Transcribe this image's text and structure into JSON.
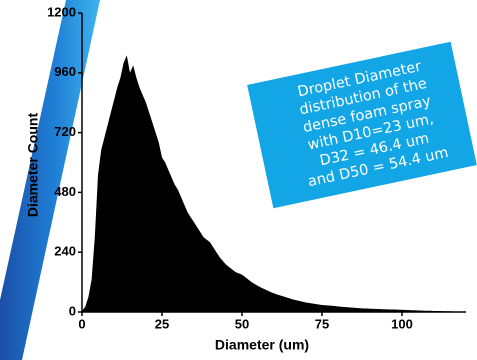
{
  "chart_data": {
    "type": "area",
    "xlabel": "Diameter (um)",
    "ylabel": "Diameter Count",
    "color": "#000000",
    "annotation": [
      "Droplet Diameter",
      "distribution of the",
      "dense foam spray",
      "with D10=23 um,",
      "D32 = 46.4 um",
      "and D50 = 54.4 um"
    ],
    "annotation_color": "#12a6e6",
    "xlim": [
      0,
      120
    ],
    "xticks": [
      0,
      25,
      50,
      75,
      100
    ],
    "ylim": [
      0,
      1200
    ],
    "yticks": [
      0,
      240,
      480,
      720,
      960,
      1200
    ],
    "x": [
      0,
      1,
      2,
      3,
      4,
      5,
      6,
      7,
      8,
      9,
      10,
      11,
      12,
      13,
      14,
      15,
      16,
      17,
      18,
      19,
      20,
      21,
      22,
      23,
      24,
      25,
      26,
      27,
      28,
      29,
      30,
      31,
      32,
      33,
      34,
      35,
      36,
      37,
      38,
      39,
      40,
      41,
      42,
      43,
      44,
      45,
      46,
      47,
      48,
      49,
      50,
      51,
      52,
      53,
      54,
      55,
      56,
      57,
      58,
      59,
      60,
      61,
      62,
      63,
      64,
      65,
      66,
      67,
      68,
      69,
      70,
      71,
      72,
      73,
      74,
      75,
      76,
      77,
      78,
      79,
      80,
      81,
      82,
      83,
      84,
      85,
      86,
      87,
      88,
      89,
      90,
      91,
      92,
      93,
      94,
      95,
      96,
      97,
      98,
      99,
      100,
      101,
      102,
      103,
      104,
      105,
      106,
      107,
      108,
      109,
      110,
      111,
      112,
      113,
      114,
      115,
      116,
      117,
      118,
      119,
      120
    ],
    "values": [
      5,
      20,
      60,
      130,
      300,
      550,
      650,
      700,
      750,
      800,
      850,
      900,
      940,
      1000,
      1030,
      960,
      990,
      940,
      900,
      870,
      840,
      800,
      760,
      720,
      680,
      620,
      600,
      570,
      540,
      510,
      490,
      460,
      430,
      400,
      380,
      360,
      340,
      320,
      300,
      290,
      280,
      260,
      240,
      220,
      205,
      190,
      180,
      170,
      160,
      155,
      150,
      140,
      130,
      120,
      112,
      105,
      98,
      92,
      86,
      80,
      75,
      70,
      66,
      62,
      58,
      54,
      50,
      47,
      44,
      41,
      38,
      36,
      34,
      32,
      30,
      28,
      27,
      26,
      25,
      24,
      22,
      21,
      20,
      19,
      18,
      17,
      16,
      15,
      14,
      14,
      13,
      13,
      12,
      12,
      11,
      11,
      10,
      10,
      10,
      9,
      9,
      8,
      8,
      7,
      7,
      6,
      6,
      5,
      5,
      5,
      4,
      4,
      4,
      3,
      3,
      3,
      2,
      2,
      2,
      1,
      1
    ]
  }
}
